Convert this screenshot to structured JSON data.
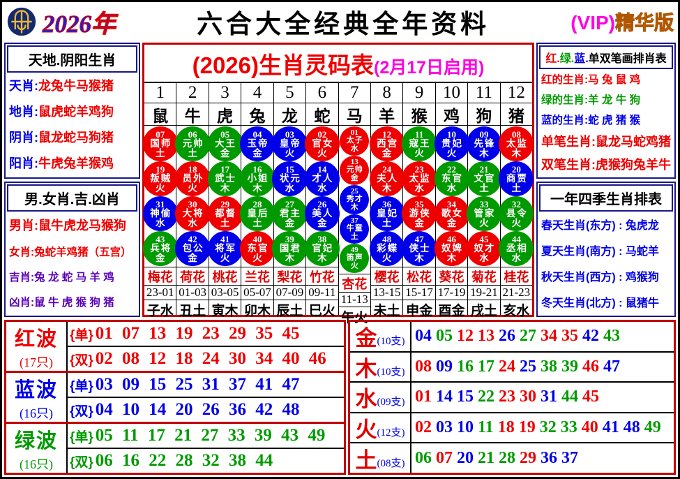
{
  "palette": {
    "red": "#ee0000",
    "blue": "#0000e8",
    "green": "#009a00",
    "navy": "#18188c",
    "dark_red_border": "#c00000",
    "purple": "#5b00b5",
    "magenta": "#ff00e0",
    "orange": "#ffa200"
  },
  "header": {
    "logo_icon": "jockey-club-emblem",
    "year": "2026年",
    "title": "六合大全经典全年资料",
    "vip_prefix": "(VIP)",
    "vip_suffix": "精华版"
  },
  "left": {
    "s1": {
      "title": "天地.阴阳生肖",
      "rows": [
        {
          "label": "天肖",
          "value": "龙兔牛马猴猪",
          "lc": "#0000e8",
          "vc": "#ee0000"
        },
        {
          "label": "地肖",
          "value": "鼠虎蛇羊鸡狗",
          "lc": "#0000e8",
          "vc": "#ee0000"
        },
        {
          "label": "阴肖",
          "value": "鼠龙蛇马狗猪",
          "lc": "#0000e8",
          "vc": "#ee0000"
        },
        {
          "label": "阳肖",
          "value": "牛虎兔羊猴鸡",
          "lc": "#0000e8",
          "vc": "#ee0000"
        }
      ]
    },
    "s2": {
      "title": "男.女肖.吉.凶肖",
      "rows": [
        {
          "label": "男肖",
          "value": "鼠牛虎龙马猴狗",
          "lc": "#ee0000",
          "vc": "#ee0000"
        },
        {
          "label": "女肖",
          "value": "兔蛇羊鸡猪（五宫）",
          "lc": "#ee0000",
          "vc": "#ee0000"
        },
        {
          "label": "吉肖",
          "value": "兔 龙 蛇 马 羊 鸡",
          "lc": "#5b00b5",
          "vc": "#5b00b5"
        },
        {
          "label": "凶肖",
          "value": "鼠 牛 虎 猴 狗 猪",
          "lc": "#5b00b5",
          "vc": "#5b00b5"
        }
      ]
    }
  },
  "table": {
    "title": "(2026)生肖灵码表",
    "subtitle": "(2月17日启用)",
    "columns": [
      {
        "num": "1",
        "animal": "鼠",
        "flower": "梅花",
        "range": "23-01",
        "branch": "子水",
        "balls": [
          {
            "n": "07",
            "role": "国师",
            "elem": "土"
          },
          {
            "n": "19",
            "role": "叛贼",
            "elem": "火"
          },
          {
            "n": "31",
            "role": "神偷",
            "elem": "水"
          },
          {
            "n": "43",
            "role": "兵将",
            "elem": "金"
          }
        ]
      },
      {
        "num": "2",
        "animal": "牛",
        "flower": "荷花",
        "range": "01-03",
        "branch": "丑土",
        "balls": [
          {
            "n": "06",
            "role": "元帅",
            "elem": "土"
          },
          {
            "n": "18",
            "role": "员外",
            "elem": "火"
          },
          {
            "n": "30",
            "role": "大将",
            "elem": "水"
          },
          {
            "n": "42",
            "role": "包公",
            "elem": "金"
          }
        ]
      },
      {
        "num": "3",
        "animal": "虎",
        "flower": "桃花",
        "range": "03-05",
        "branch": "寅木",
        "balls": [
          {
            "n": "05",
            "role": "大王",
            "elem": "金"
          },
          {
            "n": "17",
            "role": "武士",
            "elem": "木"
          },
          {
            "n": "29",
            "role": "都督",
            "elem": "土"
          },
          {
            "n": "41",
            "role": "将军",
            "elem": "火"
          }
        ]
      },
      {
        "num": "4",
        "animal": "兔",
        "flower": "兰花",
        "range": "05-07",
        "branch": "卯木",
        "balls": [
          {
            "n": "04",
            "role": "玉帝",
            "elem": "金"
          },
          {
            "n": "16",
            "role": "小姐",
            "elem": "木"
          },
          {
            "n": "28",
            "role": "皇后",
            "elem": "土"
          },
          {
            "n": "40",
            "role": "东官",
            "elem": "火"
          }
        ]
      },
      {
        "num": "5",
        "animal": "龙",
        "flower": "梨花",
        "range": "07-09",
        "branch": "辰土",
        "balls": [
          {
            "n": "03",
            "role": "皇帝",
            "elem": "火"
          },
          {
            "n": "15",
            "role": "状元",
            "elem": "水"
          },
          {
            "n": "27",
            "role": "君主",
            "elem": "金"
          },
          {
            "n": "39",
            "role": "国君",
            "elem": "木"
          }
        ]
      },
      {
        "num": "6",
        "animal": "蛇",
        "flower": "竹花",
        "range": "09-11",
        "branch": "巳火",
        "balls": [
          {
            "n": "02",
            "role": "官女",
            "elem": "火"
          },
          {
            "n": "14",
            "role": "才人",
            "elem": "水"
          },
          {
            "n": "26",
            "role": "美人",
            "elem": "金"
          },
          {
            "n": "38",
            "role": "官妃",
            "elem": "木"
          }
        ]
      },
      {
        "num": "7",
        "animal": "马",
        "flower": "杏花",
        "range": "11-13",
        "branch": "午火",
        "balls": [
          {
            "n": "01",
            "role": "太子",
            "elem": "水"
          },
          {
            "n": "13",
            "role": "元帅",
            "elem": "金"
          },
          {
            "n": "25",
            "role": "秀才",
            "elem": "木"
          },
          {
            "n": "37",
            "role": "牛童",
            "elem": "土"
          },
          {
            "n": "49",
            "role": "笛声",
            "elem": "火"
          }
        ]
      },
      {
        "num": "8",
        "animal": "羊",
        "flower": "樱花",
        "range": "13-15",
        "branch": "未土",
        "balls": [
          {
            "n": "12",
            "role": "西宫",
            "elem": "金"
          },
          {
            "n": "24",
            "role": "夫人",
            "elem": "木"
          },
          {
            "n": "36",
            "role": "皇妃",
            "elem": "土"
          },
          {
            "n": "48",
            "role": "彩蝶",
            "elem": "火"
          }
        ]
      },
      {
        "num": "9",
        "animal": "猴",
        "flower": "松花",
        "range": "15-17",
        "branch": "申金",
        "balls": [
          {
            "n": "11",
            "role": "寇王",
            "elem": "火"
          },
          {
            "n": "23",
            "role": "太监",
            "elem": "水"
          },
          {
            "n": "35",
            "role": "游侠",
            "elem": "金"
          },
          {
            "n": "47",
            "role": "侠士",
            "elem": "木"
          }
        ]
      },
      {
        "num": "10",
        "animal": "鸡",
        "flower": "葵花",
        "range": "17-19",
        "branch": "酉金",
        "balls": [
          {
            "n": "10",
            "role": "贵妃",
            "elem": "火"
          },
          {
            "n": "22",
            "role": "东官",
            "elem": "水"
          },
          {
            "n": "34",
            "role": "歌女",
            "elem": "金"
          },
          {
            "n": "46",
            "role": "奴婢",
            "elem": "木"
          }
        ]
      },
      {
        "num": "11",
        "animal": "狗",
        "flower": "菊花",
        "range": "19-21",
        "branch": "戌土",
        "balls": [
          {
            "n": "09",
            "role": "先锋",
            "elem": "木"
          },
          {
            "n": "21",
            "role": "文官",
            "elem": "土"
          },
          {
            "n": "33",
            "role": "管家",
            "elem": "火"
          },
          {
            "n": "45",
            "role": "奴才",
            "elem": "水"
          }
        ]
      },
      {
        "num": "12",
        "animal": "猪",
        "flower": "桂花",
        "range": "21-23",
        "branch": "亥水",
        "balls": [
          {
            "n": "08",
            "role": "太监",
            "elem": "木"
          },
          {
            "n": "20",
            "role": "商贾",
            "elem": "土"
          },
          {
            "n": "32",
            "role": "县令",
            "elem": "火"
          },
          {
            "n": "44",
            "role": "丞相",
            "elem": "水"
          }
        ]
      }
    ]
  },
  "right": {
    "s1": {
      "title_segments": [
        {
          "text": "红.",
          "color": "#ee0000"
        },
        {
          "text": "绿.",
          "color": "#009a00"
        },
        {
          "text": "蓝.",
          "color": "#0000e8"
        },
        {
          "text": "单双笔画排肖表",
          "color": "#000000"
        }
      ],
      "rows": [
        {
          "label": "红的生肖",
          "value": "马 兔 鼠 鸡",
          "color": "#ee0000"
        },
        {
          "label": "绿的生肖",
          "value": "羊 龙 牛 狗",
          "color": "#009a00"
        },
        {
          "label": "蓝的生肖",
          "value": "蛇 虎 猪 猴",
          "color": "#0000e8"
        },
        {
          "label": "单笔生肖",
          "value": "鼠龙马蛇鸡猪",
          "color": "#ee0000"
        },
        {
          "label": "双笔生肖",
          "value": "虎猴狗兔羊牛",
          "color": "#ee0000"
        }
      ]
    },
    "s2": {
      "title": "一年四季生肖排表",
      "color": "#0000e8",
      "rows": [
        {
          "label": "春天生肖(东方)",
          "value": "兔虎龙"
        },
        {
          "label": "夏天生肖(南方)",
          "value": "马蛇羊"
        },
        {
          "label": "秋天生肖(西方)",
          "value": "鸡猴狗"
        },
        {
          "label": "冬天生肖(北方)",
          "value": "鼠猪牛"
        }
      ]
    }
  },
  "waves": [
    {
      "name": "红波",
      "count": "(17只)",
      "key": "red",
      "odd_label": "{单}",
      "even_label": "{双}",
      "odd": [
        "01",
        "07",
        "13",
        "19",
        "23",
        "29",
        "35",
        "45"
      ],
      "even": [
        "02",
        "08",
        "12",
        "18",
        "24",
        "30",
        "34",
        "40",
        "46"
      ]
    },
    {
      "name": "蓝波",
      "count": "(16只)",
      "key": "blue",
      "odd_label": "{单}",
      "even_label": "{双}",
      "odd": [
        "03",
        "09",
        "15",
        "25",
        "31",
        "37",
        "41",
        "47"
      ],
      "even": [
        "04",
        "10",
        "14",
        "20",
        "26",
        "36",
        "42",
        "48"
      ]
    },
    {
      "name": "绿波",
      "count": "(16只)",
      "key": "green",
      "odd_label": "{单}",
      "even_label": "{双}",
      "odd": [
        "05",
        "11",
        "17",
        "21",
        "27",
        "33",
        "39",
        "43",
        "49"
      ],
      "even": [
        "06",
        "16",
        "22",
        "28",
        "32",
        "38",
        "44"
      ]
    }
  ],
  "elements": [
    {
      "name": "金",
      "count": "(10支)",
      "numbers": [
        "04",
        "05",
        "12",
        "13",
        "26",
        "27",
        "34",
        "35",
        "42",
        "43"
      ]
    },
    {
      "name": "木",
      "count": "(10支)",
      "numbers": [
        "08",
        "09",
        "16",
        "17",
        "24",
        "25",
        "38",
        "39",
        "46",
        "47"
      ]
    },
    {
      "name": "水",
      "count": "(09支)",
      "numbers": [
        "01",
        "14",
        "15",
        "22",
        "23",
        "30",
        "31",
        "44",
        "45"
      ]
    },
    {
      "name": "火",
      "count": "(12支)",
      "numbers": [
        "02",
        "03",
        "10",
        "11",
        "18",
        "19",
        "32",
        "33",
        "40",
        "41",
        "48",
        "49"
      ]
    },
    {
      "name": "土",
      "count": "(08支)",
      "numbers": [
        "06",
        "07",
        "20",
        "21",
        "28",
        "29",
        "36",
        "37"
      ]
    }
  ]
}
